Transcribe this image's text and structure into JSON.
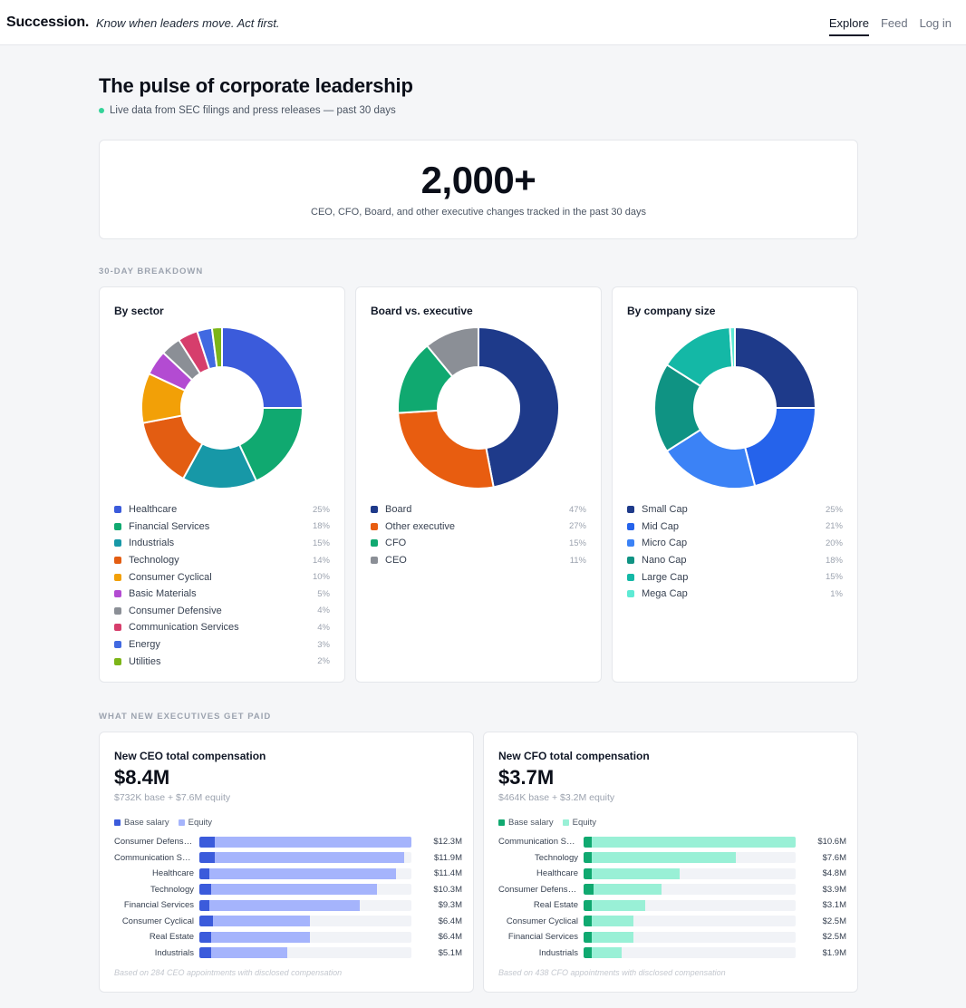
{
  "header": {
    "brand": "Succession.",
    "tagline": "Know when leaders move. Act first.",
    "nav": [
      {
        "label": "Explore",
        "active": true
      },
      {
        "label": "Feed",
        "active": false
      },
      {
        "label": "Log in",
        "active": false
      }
    ]
  },
  "page": {
    "title": "The pulse of corporate leadership",
    "subtitle": "Live data from SEC filings and press releases — past 30 days"
  },
  "hero": {
    "count": "2,000+",
    "caption": "CEO, CFO, Board, and other executive changes tracked in the past 30 days"
  },
  "breakdown": {
    "section_label": "30-DAY BREAKDOWN",
    "charts": [
      {
        "title": "By sector",
        "segments": [
          {
            "label": "Healthcare",
            "pct": 25,
            "pct_label": "25%",
            "color": "#3b5bdb"
          },
          {
            "label": "Financial Services",
            "pct": 18,
            "pct_label": "18%",
            "color": "#10a970"
          },
          {
            "label": "Industrials",
            "pct": 15,
            "pct_label": "15%",
            "color": "#1798a7"
          },
          {
            "label": "Technology",
            "pct": 14,
            "pct_label": "14%",
            "color": "#e35d12"
          },
          {
            "label": "Consumer Cyclical",
            "pct": 10,
            "pct_label": "10%",
            "color": "#f2a007"
          },
          {
            "label": "Basic Materials",
            "pct": 5,
            "pct_label": "5%",
            "color": "#b34bd2"
          },
          {
            "label": "Consumer Defensive",
            "pct": 4,
            "pct_label": "4%",
            "color": "#8b8f96"
          },
          {
            "label": "Communication Services",
            "pct": 4,
            "pct_label": "4%",
            "color": "#d63e6c"
          },
          {
            "label": "Energy",
            "pct": 3,
            "pct_label": "3%",
            "color": "#4169e1"
          },
          {
            "label": "Utilities",
            "pct": 2,
            "pct_label": "2%",
            "color": "#7cb518"
          }
        ]
      },
      {
        "title": "Board vs. executive",
        "segments": [
          {
            "label": "Board",
            "pct": 47,
            "pct_label": "47%",
            "color": "#1e3a8a"
          },
          {
            "label": "Other executive",
            "pct": 27,
            "pct_label": "27%",
            "color": "#e85d10"
          },
          {
            "label": "CFO",
            "pct": 15,
            "pct_label": "15%",
            "color": "#10a970"
          },
          {
            "label": "CEO",
            "pct": 11,
            "pct_label": "11%",
            "color": "#8b8f96"
          }
        ]
      },
      {
        "title": "By company size",
        "segments": [
          {
            "label": "Small Cap",
            "pct": 25,
            "pct_label": "25%",
            "color": "#1e3a8a"
          },
          {
            "label": "Mid Cap",
            "pct": 21,
            "pct_label": "21%",
            "color": "#2563eb"
          },
          {
            "label": "Micro Cap",
            "pct": 20,
            "pct_label": "20%",
            "color": "#3b82f6"
          },
          {
            "label": "Nano Cap",
            "pct": 18,
            "pct_label": "18%",
            "color": "#0f9383"
          },
          {
            "label": "Large Cap",
            "pct": 15,
            "pct_label": "15%",
            "color": "#14b8a6"
          },
          {
            "label": "Mega Cap",
            "pct": 1,
            "pct_label": "1%",
            "color": "#5eead4"
          }
        ]
      }
    ]
  },
  "compensation": {
    "section_label": "WHAT NEW EXECUTIVES GET PAID",
    "cards": [
      {
        "title": "New CEO total compensation",
        "amount": "$8.4M",
        "breakdown": "$732K base + $7.6M equity",
        "legend": {
          "base": "Base salary",
          "equity": "Equity"
        },
        "base_color": "#3b5bdb",
        "equity_color": "#a5b4fc",
        "max": 12.3,
        "rows": [
          {
            "label": "Consumer Defensive",
            "total": 12.3,
            "base": 0.9,
            "value_label": "$12.3M"
          },
          {
            "label": "Communication Se...",
            "total": 11.9,
            "base": 0.9,
            "value_label": "$11.9M"
          },
          {
            "label": "Healthcare",
            "total": 11.4,
            "base": 0.6,
            "value_label": "$11.4M"
          },
          {
            "label": "Technology",
            "total": 10.3,
            "base": 0.7,
            "value_label": "$10.3M"
          },
          {
            "label": "Financial Services",
            "total": 9.3,
            "base": 0.6,
            "value_label": "$9.3M"
          },
          {
            "label": "Consumer Cyclical",
            "total": 6.4,
            "base": 0.8,
            "value_label": "$6.4M"
          },
          {
            "label": "Real Estate",
            "total": 6.4,
            "base": 0.7,
            "value_label": "$6.4M"
          },
          {
            "label": "Industrials",
            "total": 5.1,
            "base": 0.7,
            "value_label": "$5.1M"
          }
        ],
        "footnote": "Based on 284 CEO appointments with disclosed compensation"
      },
      {
        "title": "New CFO total compensation",
        "amount": "$3.7M",
        "breakdown": "$464K base + $3.2M equity",
        "legend": {
          "base": "Base salary",
          "equity": "Equity"
        },
        "base_color": "#10a970",
        "equity_color": "#99f0d6",
        "max": 10.6,
        "rows": [
          {
            "label": "Communication Se...",
            "total": 10.6,
            "base": 0.4,
            "value_label": "$10.6M"
          },
          {
            "label": "Technology",
            "total": 7.6,
            "base": 0.4,
            "value_label": "$7.6M"
          },
          {
            "label": "Healthcare",
            "total": 4.8,
            "base": 0.4,
            "value_label": "$4.8M"
          },
          {
            "label": "Consumer Defensive",
            "total": 3.9,
            "base": 0.5,
            "value_label": "$3.9M"
          },
          {
            "label": "Real Estate",
            "total": 3.1,
            "base": 0.4,
            "value_label": "$3.1M"
          },
          {
            "label": "Consumer Cyclical",
            "total": 2.5,
            "base": 0.4,
            "value_label": "$2.5M"
          },
          {
            "label": "Financial Services",
            "total": 2.5,
            "base": 0.4,
            "value_label": "$2.5M"
          },
          {
            "label": "Industrials",
            "total": 1.9,
            "base": 0.4,
            "value_label": "$1.9M"
          }
        ],
        "footnote": "Based on 438 CFO appointments with disclosed compensation"
      }
    ]
  }
}
